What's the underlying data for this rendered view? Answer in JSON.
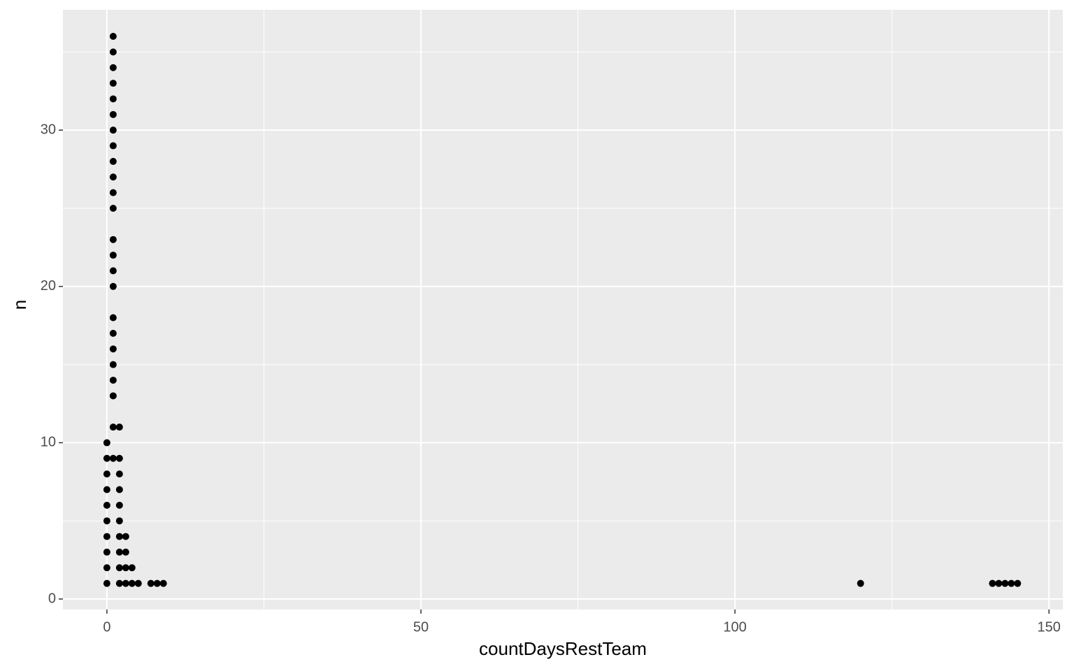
{
  "chart_data": {
    "type": "scatter",
    "x_label": "countDaysRestTeam",
    "y_label": "n",
    "x": [
      0,
      0,
      0,
      0,
      0,
      0,
      0,
      0,
      0,
      0,
      1,
      1,
      1,
      1,
      1,
      1,
      1,
      1,
      1,
      1,
      1,
      1,
      1,
      1,
      1,
      1,
      1,
      1,
      1,
      1,
      1,
      1,
      1,
      1,
      2,
      2,
      2,
      2,
      2,
      2,
      2,
      2,
      2,
      2,
      3,
      3,
      3,
      3,
      4,
      4,
      5,
      7,
      8,
      9,
      120,
      141,
      142,
      143,
      144,
      145
    ],
    "y": [
      1,
      2,
      3,
      4,
      5,
      6,
      7,
      8,
      9,
      10,
      9,
      11,
      13,
      14,
      15,
      16,
      17,
      18,
      20,
      21,
      22,
      23,
      25,
      26,
      27,
      28,
      29,
      30,
      31,
      32,
      33,
      34,
      35,
      36,
      1,
      2,
      3,
      4,
      5,
      6,
      7,
      8,
      9,
      11,
      1,
      2,
      3,
      4,
      1,
      2,
      1,
      1,
      1,
      1,
      1,
      1,
      1,
      1,
      1,
      1
    ],
    "color": "#000000",
    "xlim": [
      -7,
      152.2
    ],
    "ylim": [
      -0.67,
      37.7
    ],
    "xticks": [
      0,
      50,
      100,
      150
    ],
    "yticks": [
      0,
      10,
      20,
      30
    ],
    "x_minor_ticks": [
      25,
      75,
      125
    ],
    "y_minor_ticks": [
      5,
      15,
      25,
      35
    ],
    "grid": true
  }
}
